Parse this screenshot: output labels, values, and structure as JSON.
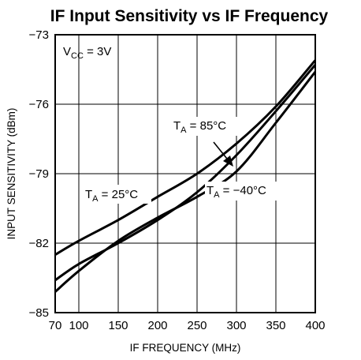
{
  "chart_data": {
    "type": "line",
    "title": "IF Input Sensitivity vs IF Frequency",
    "xlabel": "IF FREQUENCY (MHz)",
    "ylabel": "INPUT SENSITIVITY (dBm)",
    "xlim": [
      70,
      400
    ],
    "ylim": [
      -85,
      -73
    ],
    "xticks": [
      70,
      100,
      150,
      200,
      250,
      300,
      350,
      400
    ],
    "yticks": [
      -73,
      -76,
      -79,
      -82,
      -85
    ],
    "grid": true,
    "condition": {
      "main": "V",
      "sub": "CC",
      "rest": " = 3V"
    },
    "series": [
      {
        "name": "TA = 25°C",
        "label_main": "T",
        "label_sub": "A",
        "label_rest": " = 25°C",
        "x": [
          70,
          100,
          150,
          200,
          250,
          300,
          350,
          400
        ],
        "y": [
          -82.5,
          -81.9,
          -81.0,
          -80.0,
          -79.0,
          -77.7,
          -76.1,
          -74.1
        ]
      },
      {
        "name": "TA = 85°C",
        "label_main": "T",
        "label_sub": "A",
        "label_rest": " = 85°C",
        "x": [
          70,
          100,
          150,
          200,
          250,
          300,
          350,
          400
        ],
        "y": [
          -83.6,
          -82.9,
          -82.0,
          -81.0,
          -79.8,
          -78.2,
          -76.3,
          -74.3
        ]
      },
      {
        "name": "TA = -40°C",
        "label_main": "T",
        "label_sub": "A",
        "label_rest": " = −40°C",
        "x": [
          70,
          100,
          150,
          200,
          250,
          300,
          350,
          400
        ],
        "y": [
          -84.1,
          -83.2,
          -81.9,
          -80.9,
          -80.0,
          -78.9,
          -76.8,
          -74.6
        ]
      }
    ]
  }
}
